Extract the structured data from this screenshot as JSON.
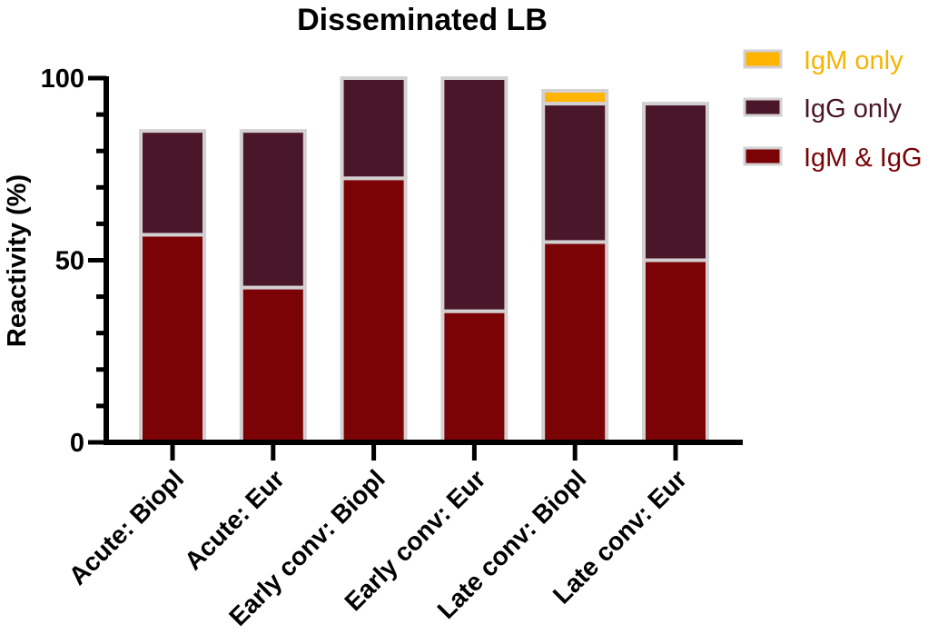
{
  "chart_data": {
    "type": "bar",
    "stacked": true,
    "title": "Disseminated LB",
    "xlabel": "",
    "ylabel": "Reactivity (%)",
    "ylim": [
      0,
      100
    ],
    "yticks": [
      0,
      50,
      100
    ],
    "ytick_labels": [
      "0",
      "50",
      "100"
    ],
    "categories": [
      "Acute: Biopl",
      "Acute: Eur",
      "Early conv: Biopl",
      "Early conv: Eur",
      "Late conv: Biopl",
      "Late conv: Eur"
    ],
    "series": [
      {
        "name": "IgM & IgG",
        "color": "#7b0306",
        "values": [
          57,
          42.5,
          72.5,
          36,
          55,
          50
        ]
      },
      {
        "name": "IgG only",
        "color": "#4a162a",
        "values": [
          28.5,
          43,
          27.5,
          64,
          38,
          43
        ]
      },
      {
        "name": "IgM only",
        "color": "#ffb400",
        "values": [
          0,
          0,
          0,
          0,
          3.5,
          0
        ]
      }
    ],
    "legend": {
      "position": "top-right",
      "entries": [
        "IgM only",
        "IgG only",
        "IgM & IgG"
      ],
      "text_colors": [
        "#f5b400",
        "#4a162a",
        "#7b0306"
      ]
    },
    "bar_outline_color": "#d4d0d2",
    "grid": false
  }
}
